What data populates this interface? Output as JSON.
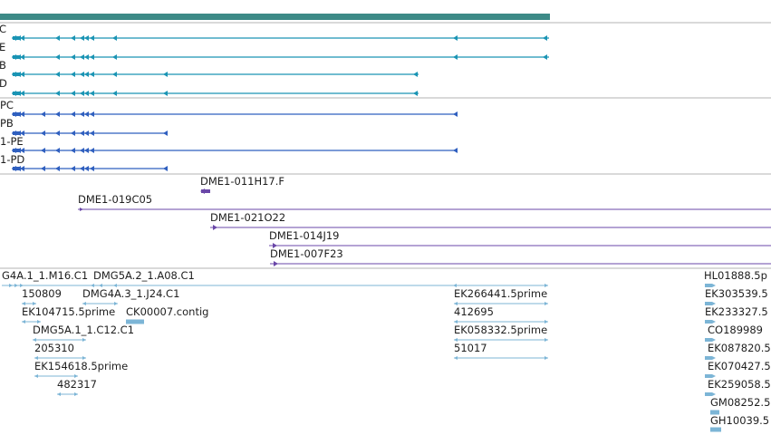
{
  "colors": {
    "background": "#ffffff",
    "gene_bar": "#3d8a87",
    "separator": "#b3b3b3",
    "transcripts_cyan": "#1a94b4",
    "transcripts_blue": "#2f5fbf",
    "bac_clones": "#6a47a8",
    "ests": "#7cb5d6",
    "text": "#1e1e1e"
  },
  "tracks": {
    "transcripts_cyan": [
      "C",
      "E",
      "B",
      "D"
    ],
    "transcripts_blue": [
      "PC",
      "PB",
      "1-PE",
      "1-PD"
    ],
    "bac_clones": [
      "DME1-011H17.F",
      "DME1-019C05",
      "DME1-021O22",
      "DME1-014J19",
      "DME1-007F23"
    ],
    "ests": [
      "G4A.1_1.M16.C1",
      "DMG5A.2_1.A08.C1",
      "150809",
      "DMG4A.3_1.J24.C1",
      "EK104715.5prime",
      "CK00007.contig",
      "DMG5A.1_1.C12.C1",
      "205310",
      "EK154618.5prime",
      "482317",
      "EK266441.5prime",
      "412695",
      "EK058332.5prime",
      "51017",
      "HL01888.5p",
      "EK303539.5",
      "EK233327.5",
      "CO189989",
      "EK087820.5",
      "EK070427.5",
      "EK259058.5",
      "GM08252.5",
      "GH10039.5"
    ]
  }
}
